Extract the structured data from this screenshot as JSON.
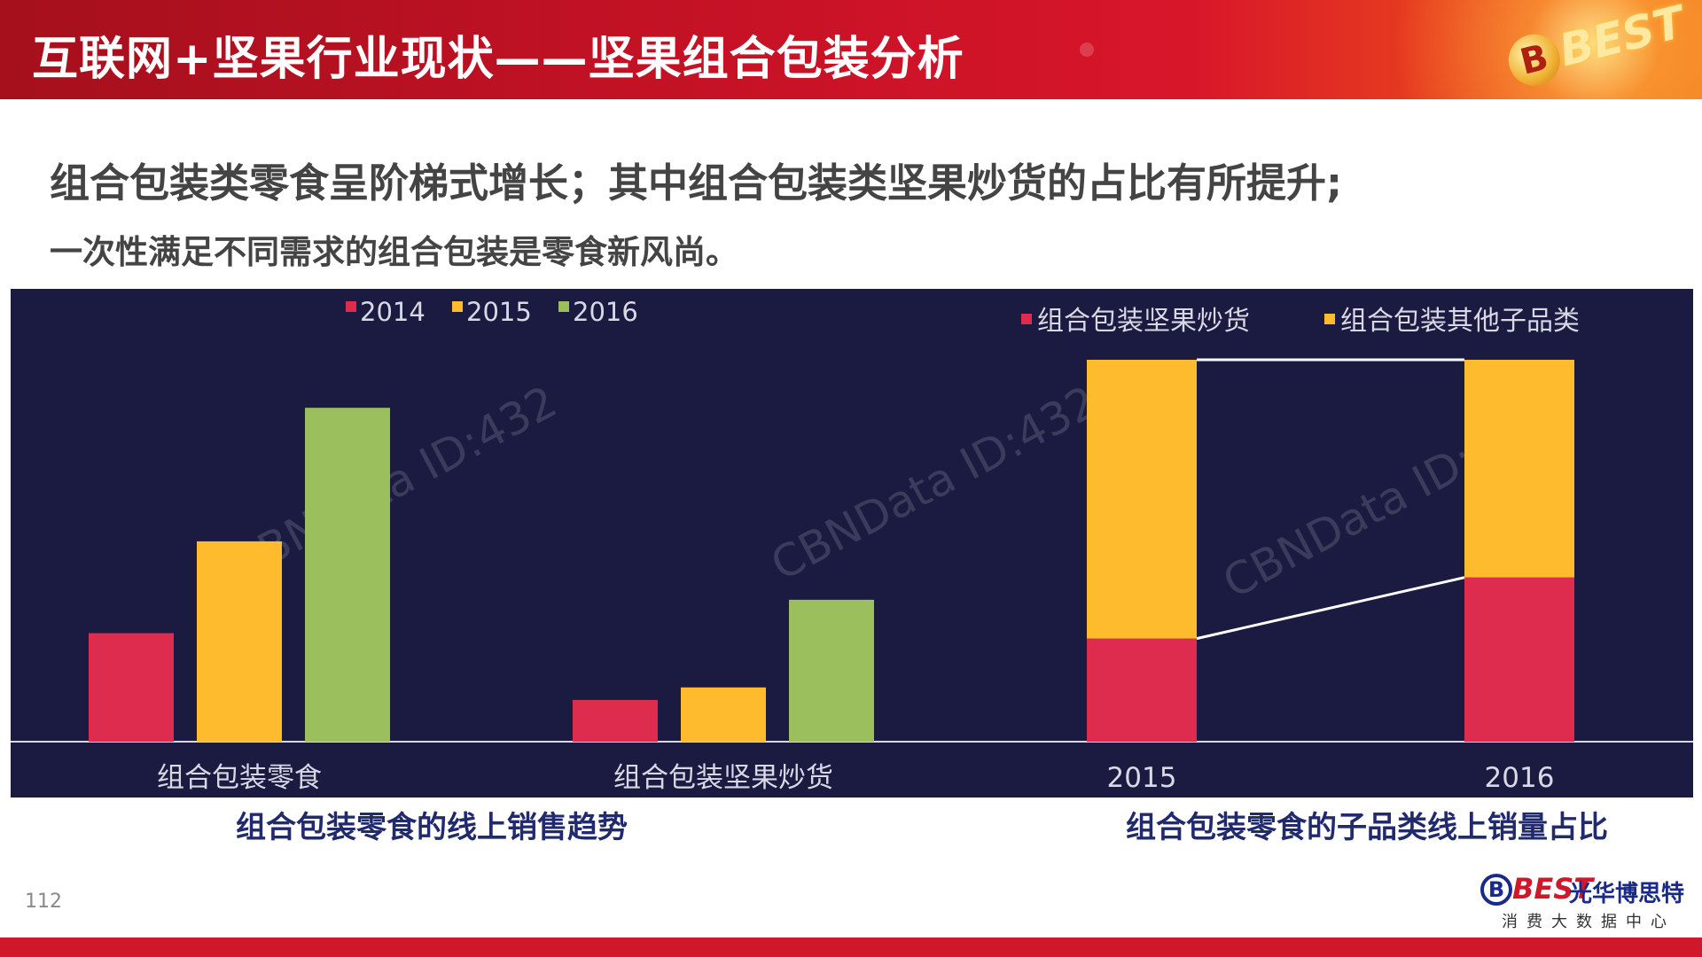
{
  "header": {
    "title": "互联网+坚果行业现状——坚果组合包装分析",
    "logo_text": "BEST"
  },
  "subtitle_line1": "组合包装类零食呈阶梯式增长；其中组合包装类坚果炒货的占比有所提升;",
  "subtitle_line2": "一次性满足不同需求的组合包装是零食新风尚。",
  "watermark": "CBNData ID:432",
  "colors": {
    "red": "#de2c4e",
    "yellow": "#fdbb2d",
    "green": "#9bbf5c",
    "panel_bg": "#1b1b42",
    "axis": "#d9d9e6",
    "text": "#d9d9e6"
  },
  "chart_data": [
    {
      "type": "bar",
      "categories": [
        "组合包装零食",
        "组合包装坚果炒货"
      ],
      "series": [
        {
          "name": "2014",
          "values": [
            26,
            10
          ]
        },
        {
          "name": "2015",
          "values": [
            48,
            13
          ]
        },
        {
          "name": "2016",
          "values": [
            80,
            34
          ]
        }
      ],
      "ylim": [
        0,
        100
      ],
      "legend_position": "top",
      "title": "",
      "caption": "组合包装零食的线上销售趋势"
    },
    {
      "type": "bar",
      "stacked": true,
      "percent": true,
      "categories": [
        "2015",
        "2016"
      ],
      "series": [
        {
          "name": "组合包装坚果炒货",
          "values": [
            27,
            43
          ]
        },
        {
          "name": "组合包装其他子品类",
          "values": [
            73,
            57
          ]
        }
      ],
      "ylim": [
        0,
        100
      ],
      "legend_position": "top-right",
      "title": "",
      "caption": "组合包装零食的子品类线上销量占比"
    }
  ],
  "page_number": "112",
  "footer_logo": {
    "en": "BEST",
    "cn": "光华博思特",
    "sub": "消费大数据中心"
  }
}
